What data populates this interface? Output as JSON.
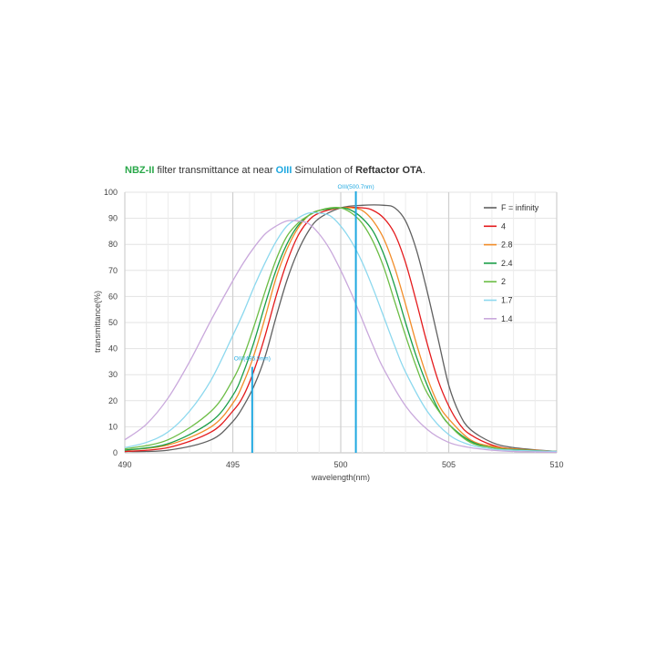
{
  "chart_data": {
    "type": "line",
    "title_parts": {
      "p1": "NBZ-II",
      "p2": " filter transmittance  at near ",
      "p3": "OIII",
      "p4": "   Simulation of ",
      "p5": "Reftactor OTA",
      "p6": "."
    },
    "xlabel": "wavelength(nm)",
    "ylabel": "transmittance(%)",
    "xlim": [
      490,
      510
    ],
    "ylim": [
      0,
      100
    ],
    "xticks": [
      490,
      495,
      500,
      505,
      510
    ],
    "yticks": [
      0,
      10,
      20,
      30,
      40,
      50,
      60,
      70,
      80,
      90,
      100
    ],
    "grid": true,
    "legend_position": "right",
    "annotations": [
      {
        "label": "OIII(500.7nm)",
        "x": 500.7,
        "color": "#1fa8e0"
      },
      {
        "label": "OIII(495.9nm)",
        "x": 495.9,
        "top": 33,
        "color": "#1fa8e0"
      }
    ],
    "series": [
      {
        "name": "F = infinity",
        "color": "#606060",
        "x": [
          490,
          492,
          494,
          495,
          495.5,
          496,
          496.5,
          497,
          497.5,
          498,
          498.5,
          499,
          500,
          501,
          502,
          502.5,
          503,
          503.5,
          504,
          504.5,
          505,
          505.5,
          506,
          507,
          508,
          510
        ],
        "y": [
          0.5,
          1,
          5,
          12,
          18,
          26,
          37,
          52,
          66,
          77,
          85,
          90,
          94,
          95,
          95,
          94,
          89,
          78,
          62,
          44,
          26,
          15,
          9,
          4,
          2,
          0.5
        ]
      },
      {
        "name": "4",
        "color": "#e41a1c",
        "x": [
          490,
          492,
          494,
          495,
          495.5,
          496,
          496.5,
          497,
          497.5,
          498,
          498.5,
          499,
          500,
          501,
          501.5,
          502,
          502.5,
          503,
          503.5,
          504,
          504.5,
          505,
          505.5,
          506,
          507,
          508,
          510
        ],
        "y": [
          0.5,
          2,
          8,
          16,
          22,
          32,
          45,
          60,
          73,
          83,
          89,
          92,
          94,
          94,
          93,
          90,
          84,
          73,
          58,
          42,
          28,
          18,
          11,
          7,
          3,
          1.5,
          0.5
        ]
      },
      {
        "name": "2.8",
        "color": "#f28c28",
        "x": [
          490,
          492,
          494,
          495,
          495.5,
          496,
          496.5,
          497,
          497.5,
          498,
          498.5,
          499,
          500,
          500.5,
          501,
          501.5,
          502,
          502.5,
          503,
          503.5,
          504,
          504.5,
          505,
          506,
          507,
          508,
          510
        ],
        "y": [
          1,
          3,
          10,
          19,
          27,
          38,
          52,
          67,
          78,
          86,
          91,
          93,
          94,
          94,
          93,
          89,
          82,
          71,
          57,
          42,
          29,
          19,
          13,
          5,
          2.5,
          1.5,
          0.5
        ]
      },
      {
        "name": "2.4",
        "color": "#1a9e48",
        "x": [
          490,
          492,
          494,
          495,
          495.5,
          496,
          496.5,
          497,
          497.5,
          498,
          498.5,
          499,
          500,
          500.5,
          501,
          501.5,
          502,
          502.5,
          503,
          503.5,
          504,
          504.5,
          505,
          506,
          507,
          508,
          510
        ],
        "y": [
          1,
          3.5,
          12,
          22,
          31,
          43,
          57,
          70,
          80,
          87,
          91,
          93,
          94,
          93,
          90,
          85,
          76,
          64,
          50,
          37,
          26,
          17,
          11,
          4.5,
          2,
          1.2,
          0.5
        ]
      },
      {
        "name": "2",
        "color": "#6cbd45",
        "x": [
          490,
          492,
          494,
          495,
          495.5,
          496,
          496.5,
          497,
          497.5,
          498,
          498.5,
          499,
          499.5,
          500,
          500.5,
          501,
          501.5,
          502,
          502.5,
          503,
          503.5,
          504,
          505,
          506,
          507,
          508,
          510
        ],
        "y": [
          1.5,
          5,
          16,
          28,
          37,
          49,
          62,
          74,
          83,
          88,
          91,
          93,
          94,
          94,
          92,
          88,
          81,
          71,
          58,
          45,
          33,
          23,
          11,
          4,
          2,
          1,
          0.5
        ]
      },
      {
        "name": "1.7",
        "color": "#8cd8ee",
        "x": [
          490,
          491,
          492,
          493,
          494,
          495,
          495.5,
          496,
          496.5,
          497,
          497.5,
          498,
          498.5,
          499,
          499.5,
          500,
          500.5,
          501,
          501.5,
          502,
          502.5,
          503,
          504,
          505,
          506,
          507,
          508,
          510
        ],
        "y": [
          2,
          4,
          8,
          16,
          28,
          45,
          54,
          64,
          73,
          81,
          87,
          90,
          92,
          92,
          91,
          87,
          81,
          73,
          63,
          52,
          41,
          31,
          16,
          7,
          3,
          1.5,
          1,
          0.5
        ]
      },
      {
        "name": "1.4",
        "color": "#c9a8dc",
        "x": [
          490,
          491,
          492,
          493,
          494,
          495,
          495.5,
          496,
          496.5,
          497,
          497.5,
          498,
          498.5,
          499,
          499.5,
          500,
          500.5,
          501,
          501.5,
          502,
          503,
          504,
          505,
          506,
          507,
          508,
          510
        ],
        "y": [
          5,
          11,
          21,
          35,
          51,
          66,
          73,
          79,
          84,
          87,
          89,
          89,
          88,
          84,
          78,
          70,
          61,
          51,
          41,
          32,
          18,
          9,
          4,
          2,
          1,
          0.5,
          0.2
        ]
      }
    ]
  }
}
